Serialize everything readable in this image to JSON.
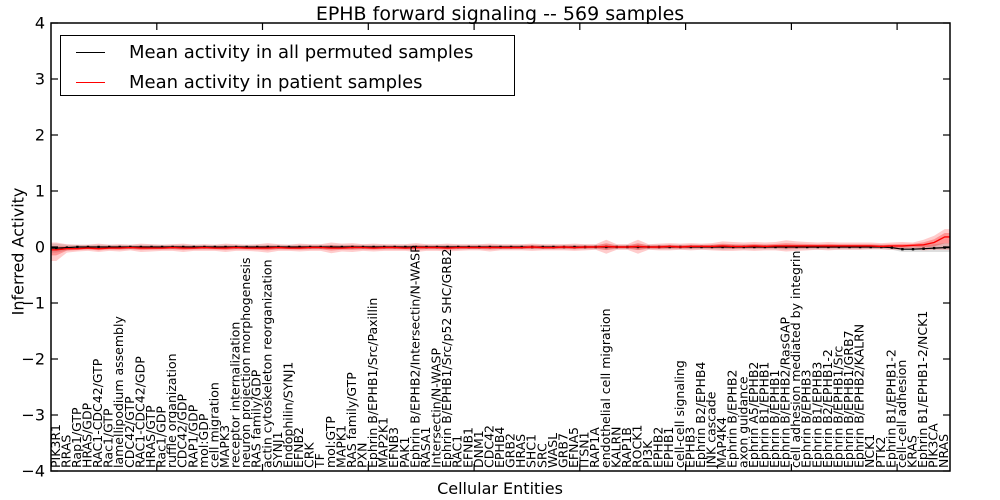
{
  "chart_data": {
    "type": "line",
    "title": "EPHB forward signaling -- 569 samples",
    "xlabel": "Cellular Entities",
    "ylabel": "Inferred Activity",
    "ylim": [
      -4,
      4
    ],
    "ytick_values": [
      4,
      3,
      2,
      1,
      0,
      -1,
      -2,
      -3,
      -4
    ],
    "ytick_labels": [
      "4",
      "3",
      "2",
      "1",
      "0",
      "−1",
      "−2",
      "−3",
      "−4"
    ],
    "grid": false,
    "legend_position": "upper left",
    "categories": [
      "PIK3R1",
      "RRAS",
      "Rap1/GTP",
      "HRAS/GDP",
      "RAC1-CDC42/GTP",
      "Rac1/GTP",
      "lamellipodium assembly",
      "CDC42/GTP",
      "RAC1-CDC42/GDP",
      "HRAS/GTP",
      "Rac1/GDP",
      "ruffle organization",
      "CDC42/GDP",
      "RAP1/GDP",
      "mol:GDP",
      "cell migration",
      "MAPK3",
      "receptor internalization",
      "neuron projection morphogenesis",
      "RAS family/GDP",
      "actin cytoskeleton reorganization",
      "SYNJ1",
      "Endophilin/SYNJ1",
      "EFNB2",
      "CRK",
      "TF",
      "mol:GTP",
      "MAPK1",
      "RAS family/GTP",
      "PXN",
      "Ephrin B/EPHB1/Src/Paxillin",
      "MAP2K1",
      "EFNB3",
      "PAK1",
      "Ephrin B/EPHB2/Intersectin/N-WASP",
      "RASA1",
      "Intersectin/N-WASP",
      "Ephrin B/EPHB1/Src/p52 SHC/GRB2",
      "RAC1",
      "EFNB1",
      "DNM1",
      "CDC42",
      "EPHB4",
      "GRB2",
      "HRAS",
      "SHC1",
      "SRC",
      "WASL",
      "GRB7",
      "EFNA5",
      "ITSN1",
      "RAP1A",
      "endothelial cell migration",
      "KALRN",
      "RAP1B",
      "ROCK1",
      "PI3K",
      "EPHB2",
      "EPHB1",
      "cell-cell signaling",
      "EPHB3",
      "Ephrin B2/EPHB4",
      "JNK cascade",
      "MAP4K4",
      "Ephrin B/EPHB2",
      "axon guidance",
      "Ephrin A5/EPHB2",
      "Ephrin B1/EPHB1",
      "Ephrin B/EPHB1",
      "Ephrin B/EPHB2/RasGAP",
      "cell adhesion mediated by integrin",
      "Ephrin B/EPHB3",
      "Ephrin B1/EPHB3",
      "Ephrin B2/EPHB1-2",
      "Ephrin B/EPHB1/Src",
      "Ephrin B/EPHB1/GRB7",
      "Ephrin B/EPHB2/KALRN",
      "NCK1",
      "PTK2",
      "Ephrin B1/EPHB1-2",
      "cell-cell adhesion",
      "KRAS",
      "Ephrin B1/EPHB1-2/NCK1",
      "PIK3CA",
      "NRAS"
    ],
    "series": [
      {
        "name": "Mean activity in all permuted samples",
        "color": "#000000",
        "band_color": "#000000",
        "values": [
          -0.02,
          -0.01,
          0,
          0,
          0,
          0,
          0,
          0,
          0,
          0,
          0,
          0,
          0,
          0,
          0,
          0,
          0,
          0,
          0,
          0,
          0,
          0,
          0,
          0,
          0,
          0,
          0,
          0,
          0,
          0,
          0,
          0,
          0,
          0,
          0,
          0,
          0,
          0,
          0,
          0,
          0,
          0,
          0,
          0,
          0,
          0,
          0,
          0,
          0,
          0,
          0,
          0,
          0,
          0,
          0,
          0,
          0,
          0,
          0,
          0,
          0,
          0,
          0,
          0,
          0,
          0,
          0,
          0,
          0,
          0,
          0,
          0,
          0,
          0,
          0,
          0,
          0,
          0,
          0,
          -0.01,
          -0.04,
          -0.04,
          -0.03,
          -0.02,
          -0.01
        ],
        "band_half": [
          0.08,
          0.05,
          0.04,
          0.04,
          0.04,
          0.04,
          0.04,
          0.04,
          0.04,
          0.04,
          0.04,
          0.04,
          0.04,
          0.04,
          0.04,
          0.04,
          0.04,
          0.04,
          0.04,
          0.04,
          0.04,
          0.04,
          0.04,
          0.04,
          0.04,
          0.04,
          0.04,
          0.04,
          0.04,
          0.04,
          0.04,
          0.04,
          0.04,
          0.04,
          0.04,
          0.04,
          0.04,
          0.04,
          0.04,
          0.04,
          0.04,
          0.04,
          0.04,
          0.04,
          0.04,
          0.04,
          0.04,
          0.04,
          0.04,
          0.04,
          0.04,
          0.04,
          0.05,
          0.04,
          0.04,
          0.05,
          0.04,
          0.04,
          0.04,
          0.04,
          0.04,
          0.04,
          0.04,
          0.05,
          0.04,
          0.04,
          0.04,
          0.04,
          0.04,
          0.05,
          0.04,
          0.04,
          0.04,
          0.04,
          0.04,
          0.04,
          0.04,
          0.04,
          0.04,
          0.04,
          0.05,
          0.05,
          0.06,
          0.07,
          0.08
        ]
      },
      {
        "name": "Mean activity in patient samples",
        "color": "#ff0000",
        "band_color": "#ff0000",
        "values": [
          -0.05,
          -0.03,
          -0.03,
          -0.02,
          -0.03,
          -0.02,
          -0.02,
          -0.01,
          -0.02,
          -0.02,
          -0.02,
          -0.01,
          -0.02,
          -0.02,
          -0.01,
          -0.02,
          -0.02,
          -0.01,
          -0.02,
          -0.02,
          -0.02,
          -0.01,
          -0.02,
          -0.02,
          -0.01,
          -0.01,
          -0.02,
          -0.02,
          -0.01,
          -0.01,
          -0.02,
          -0.01,
          -0.01,
          -0.02,
          -0.01,
          -0.01,
          -0.01,
          -0.02,
          -0.01,
          -0.01,
          -0.01,
          -0.01,
          -0.01,
          -0.01,
          -0.01,
          0,
          -0.01,
          -0.01,
          0,
          -0.01,
          0,
          0,
          0.01,
          0,
          0,
          0.01,
          0,
          0,
          0.01,
          0,
          0.01,
          0.01,
          0.01,
          0.02,
          0.01,
          0.01,
          0.02,
          0.01,
          0.02,
          0.02,
          0.02,
          0.02,
          0.02,
          0.02,
          0.02,
          0.02,
          0.02,
          0.02,
          0.01,
          0.02,
          0.02,
          0.03,
          0.04,
          0.08,
          0.18
        ],
        "band_upper": [
          0.08,
          0.05,
          0.04,
          0.04,
          0.06,
          0.04,
          0.05,
          0.04,
          0.06,
          0.05,
          0.04,
          0.05,
          0.06,
          0.04,
          0.05,
          0.04,
          0.06,
          0.05,
          0.04,
          0.05,
          0.07,
          0.05,
          0.04,
          0.06,
          0.05,
          0.05,
          0.08,
          0.06,
          0.07,
          0.05,
          0.06,
          0.05,
          0.05,
          0.05,
          0.07,
          0.05,
          0.05,
          0.06,
          0.05,
          0.05,
          0.05,
          0.06,
          0.05,
          0.05,
          0.05,
          0.06,
          0.05,
          0.05,
          0.05,
          0.06,
          0.05,
          0.05,
          0.13,
          0.05,
          0.05,
          0.13,
          0.05,
          0.06,
          0.07,
          0.06,
          0.07,
          0.06,
          0.07,
          0.1,
          0.09,
          0.08,
          0.09,
          0.08,
          0.09,
          0.12,
          0.1,
          0.09,
          0.08,
          0.09,
          0.08,
          0.08,
          0.08,
          0.08,
          0.07,
          0.08,
          0.09,
          0.08,
          0.13,
          0.2,
          0.32
        ],
        "band_lower": [
          -0.25,
          -0.1,
          -0.08,
          -0.07,
          -0.09,
          -0.07,
          -0.08,
          -0.06,
          -0.09,
          -0.08,
          -0.07,
          -0.07,
          -0.09,
          -0.07,
          -0.07,
          -0.07,
          -0.09,
          -0.07,
          -0.07,
          -0.08,
          -0.1,
          -0.07,
          -0.07,
          -0.08,
          -0.07,
          -0.07,
          -0.11,
          -0.08,
          -0.09,
          -0.07,
          -0.08,
          -0.07,
          -0.07,
          -0.07,
          -0.09,
          -0.07,
          -0.07,
          -0.08,
          -0.07,
          -0.06,
          -0.06,
          -0.08,
          -0.06,
          -0.06,
          -0.06,
          -0.07,
          -0.06,
          -0.06,
          -0.06,
          -0.07,
          -0.06,
          -0.05,
          -0.12,
          -0.05,
          -0.05,
          -0.12,
          -0.05,
          -0.06,
          -0.06,
          -0.05,
          -0.06,
          -0.05,
          -0.06,
          -0.07,
          -0.07,
          -0.06,
          -0.07,
          -0.06,
          -0.06,
          -0.08,
          -0.07,
          -0.06,
          -0.05,
          -0.06,
          -0.05,
          -0.05,
          -0.05,
          -0.04,
          -0.04,
          -0.05,
          -0.05,
          -0.04,
          -0.06,
          -0.05,
          -0.05
        ]
      }
    ]
  }
}
